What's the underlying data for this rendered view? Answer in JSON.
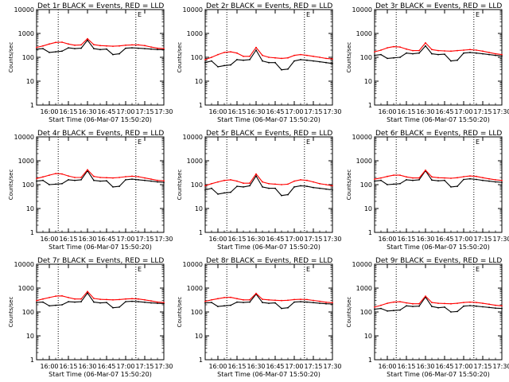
{
  "figure": {
    "xlabel": "Start Time (06-Mar-07 15:50:20)",
    "ylabel": "Counts/sec",
    "x_ticks": [
      "16:00",
      "16:15",
      "16:30",
      "16:45",
      "17:00",
      "17:15",
      "17:30"
    ],
    "y_ticks": [
      "1",
      "10",
      "100",
      "1000",
      "10000"
    ],
    "legend_marker": "E",
    "colors": {
      "events": "#000000",
      "lld": "#ff0000",
      "background": "#ffffff"
    }
  },
  "chart_data": [
    {
      "type": "line",
      "title": "Det 1r BLACK = Events, RED = LLD",
      "xlabel": "Start Time (06-Mar-07 15:50:20)",
      "ylabel": "Counts/sec",
      "yscale": "log",
      "ylim": [
        1,
        10000
      ],
      "xlim_minutes": [
        -10,
        90
      ],
      "x": [
        -10,
        -5,
        0,
        5,
        10,
        15,
        20,
        25,
        30,
        35,
        40,
        45,
        50,
        55,
        60,
        65,
        70,
        75,
        80,
        85,
        90
      ],
      "series": [
        {
          "name": "Events",
          "values": [
            220,
            230,
            160,
            170,
            180,
            250,
            230,
            240,
            520,
            230,
            210,
            220,
            130,
            140,
            240,
            250,
            240,
            230,
            220,
            210,
            210
          ]
        },
        {
          "name": "LLD",
          "values": [
            260,
            300,
            360,
            420,
            430,
            360,
            320,
            330,
            600,
            340,
            310,
            300,
            290,
            300,
            320,
            330,
            330,
            310,
            270,
            240,
            230
          ]
        }
      ]
    },
    {
      "type": "line",
      "title": "Det 2r BLACK = Events, RED = LLD",
      "xlabel": "Start Time (06-Mar-07 15:50:20)",
      "ylabel": "Counts/sec",
      "yscale": "log",
      "ylim": [
        1,
        10000
      ],
      "xlim_minutes": [
        -10,
        90
      ],
      "x": [
        -10,
        -5,
        0,
        5,
        10,
        15,
        20,
        25,
        30,
        35,
        40,
        45,
        50,
        55,
        60,
        65,
        70,
        75,
        80,
        85,
        90
      ],
      "series": [
        {
          "name": "Events",
          "values": [
            60,
            70,
            40,
            45,
            48,
            80,
            75,
            80,
            200,
            70,
            60,
            60,
            30,
            32,
            70,
            80,
            75,
            70,
            65,
            60,
            55
          ]
        },
        {
          "name": "LLD",
          "values": [
            80,
            100,
            130,
            160,
            170,
            150,
            110,
            110,
            260,
            120,
            100,
            95,
            90,
            95,
            120,
            130,
            120,
            110,
            100,
            90,
            85
          ]
        }
      ]
    },
    {
      "type": "line",
      "title": "Det 3r BLACK = Events, RED = LLD",
      "xlabel": "Start Time (06-Mar-07 15:50:20)",
      "ylabel": "Counts/sec",
      "yscale": "log",
      "ylim": [
        1,
        10000
      ],
      "xlim_minutes": [
        -10,
        90
      ],
      "x": [
        -10,
        -5,
        0,
        5,
        10,
        15,
        20,
        25,
        30,
        35,
        40,
        45,
        50,
        55,
        60,
        65,
        70,
        75,
        80,
        85,
        90
      ],
      "series": [
        {
          "name": "Events",
          "values": [
            120,
            130,
            90,
            95,
            100,
            150,
            140,
            150,
            300,
            140,
            130,
            135,
            70,
            75,
            150,
            160,
            150,
            140,
            130,
            120,
            115
          ]
        },
        {
          "name": "LLD",
          "values": [
            170,
            200,
            250,
            280,
            270,
            220,
            190,
            190,
            400,
            210,
            190,
            185,
            180,
            190,
            200,
            210,
            200,
            180,
            160,
            140,
            130
          ]
        }
      ]
    },
    {
      "type": "line",
      "title": "Det 4r BLACK = Events, RED = LLD",
      "xlabel": "Start Time (06-Mar-07 15:50:20)",
      "ylabel": "Counts/sec",
      "yscale": "log",
      "ylim": [
        1,
        10000
      ],
      "xlim_minutes": [
        -10,
        90
      ],
      "x": [
        -10,
        -5,
        0,
        5,
        10,
        15,
        20,
        25,
        30,
        35,
        40,
        45,
        50,
        55,
        60,
        65,
        70,
        75,
        80,
        85,
        90
      ],
      "series": [
        {
          "name": "Events",
          "values": [
            140,
            150,
            100,
            105,
            110,
            160,
            150,
            160,
            380,
            150,
            140,
            145,
            80,
            85,
            160,
            170,
            160,
            150,
            140,
            130,
            125
          ]
        },
        {
          "name": "LLD",
          "values": [
            180,
            210,
            250,
            290,
            280,
            230,
            200,
            200,
            420,
            220,
            200,
            195,
            190,
            200,
            215,
            225,
            215,
            190,
            170,
            150,
            145
          ]
        }
      ]
    },
    {
      "type": "line",
      "title": "Det 5r BLACK = Events, RED = LLD",
      "xlabel": "Start Time (06-Mar-07 15:50:20)",
      "ylabel": "Counts/sec",
      "yscale": "log",
      "ylim": [
        1,
        10000
      ],
      "xlim_minutes": [
        -10,
        90
      ],
      "x": [
        -10,
        -5,
        0,
        5,
        10,
        15,
        20,
        25,
        30,
        35,
        40,
        45,
        50,
        55,
        60,
        65,
        70,
        75,
        80,
        85,
        90
      ],
      "series": [
        {
          "name": "Events",
          "values": [
            60,
            70,
            40,
            45,
            48,
            85,
            80,
            90,
            230,
            80,
            70,
            70,
            35,
            38,
            80,
            90,
            85,
            75,
            70,
            65,
            60
          ]
        },
        {
          "name": "LLD",
          "values": [
            90,
            110,
            130,
            150,
            160,
            140,
            115,
            115,
            280,
            130,
            110,
            105,
            100,
            105,
            140,
            160,
            150,
            130,
            110,
            100,
            90
          ]
        }
      ]
    },
    {
      "type": "line",
      "title": "Det 6r BLACK = Events, RED = LLD",
      "xlabel": "Start Time (06-Mar-07 15:50:20)",
      "ylabel": "Counts/sec",
      "yscale": "log",
      "ylim": [
        1,
        10000
      ],
      "xlim_minutes": [
        -10,
        90
      ],
      "x": [
        -10,
        -5,
        0,
        5,
        10,
        15,
        20,
        25,
        30,
        35,
        40,
        45,
        50,
        55,
        60,
        65,
        70,
        75,
        80,
        85,
        90
      ],
      "series": [
        {
          "name": "Events",
          "values": [
            140,
            150,
            100,
            105,
            110,
            160,
            150,
            160,
            380,
            155,
            145,
            150,
            80,
            85,
            165,
            175,
            165,
            150,
            140,
            130,
            125
          ]
        },
        {
          "name": "LLD",
          "values": [
            170,
            190,
            220,
            250,
            250,
            210,
            190,
            190,
            400,
            210,
            195,
            190,
            185,
            195,
            215,
            230,
            220,
            195,
            175,
            160,
            150
          ]
        }
      ]
    },
    {
      "type": "line",
      "title": "Det 7r BLACK = Events, RED = LLD",
      "xlabel": "Start Time (06-Mar-07 15:50:20)",
      "ylabel": "Counts/sec",
      "yscale": "log",
      "ylim": [
        1,
        10000
      ],
      "xlim_minutes": [
        -10,
        90
      ],
      "x": [
        -10,
        -5,
        0,
        5,
        10,
        15,
        20,
        25,
        30,
        35,
        40,
        45,
        50,
        55,
        60,
        65,
        70,
        75,
        80,
        85,
        90
      ],
      "series": [
        {
          "name": "Events",
          "values": [
            250,
            260,
            180,
            190,
            200,
            270,
            260,
            270,
            620,
            260,
            240,
            250,
            150,
            160,
            270,
            280,
            270,
            255,
            240,
            230,
            225
          ]
        },
        {
          "name": "LLD",
          "values": [
            300,
            350,
            400,
            460,
            470,
            400,
            350,
            350,
            720,
            370,
            340,
            330,
            320,
            330,
            350,
            360,
            350,
            320,
            290,
            260,
            250
          ]
        }
      ]
    },
    {
      "type": "line",
      "title": "Det 8r BLACK = Events, RED = LLD",
      "xlabel": "Start Time (06-Mar-07 15:50:20)",
      "ylabel": "Counts/sec",
      "yscale": "log",
      "ylim": [
        1,
        10000
      ],
      "xlim_minutes": [
        -10,
        90
      ],
      "x": [
        -10,
        -5,
        0,
        5,
        10,
        15,
        20,
        25,
        30,
        35,
        40,
        45,
        50,
        55,
        60,
        65,
        70,
        75,
        80,
        85,
        90
      ],
      "series": [
        {
          "name": "Events",
          "values": [
            240,
            250,
            170,
            180,
            190,
            260,
            250,
            260,
            560,
            250,
            230,
            240,
            140,
            150,
            260,
            270,
            260,
            245,
            230,
            220,
            215
          ]
        },
        {
          "name": "LLD",
          "values": [
            280,
            320,
            360,
            400,
            410,
            360,
            320,
            320,
            600,
            340,
            320,
            310,
            300,
            310,
            330,
            340,
            330,
            305,
            280,
            255,
            245
          ]
        }
      ]
    },
    {
      "type": "line",
      "title": "Det 9r BLACK = Events, RED = LLD",
      "xlabel": "Start Time (06-Mar-07 15:50:20)",
      "ylabel": "Counts/sec",
      "yscale": "log",
      "ylim": [
        1,
        10000
      ],
      "xlim_minutes": [
        -10,
        90
      ],
      "x": [
        -10,
        -5,
        0,
        5,
        10,
        15,
        20,
        25,
        30,
        35,
        40,
        45,
        50,
        55,
        60,
        65,
        70,
        75,
        80,
        85,
        90
      ],
      "series": [
        {
          "name": "Events",
          "values": [
            130,
            140,
            110,
            115,
            120,
            180,
            170,
            175,
            420,
            170,
            150,
            160,
            100,
            105,
            175,
            185,
            175,
            165,
            155,
            145,
            140
          ]
        },
        {
          "name": "LLD",
          "values": [
            160,
            190,
            230,
            260,
            270,
            240,
            220,
            220,
            460,
            250,
            230,
            225,
            220,
            230,
            250,
            260,
            250,
            230,
            210,
            190,
            180
          ]
        }
      ]
    }
  ]
}
